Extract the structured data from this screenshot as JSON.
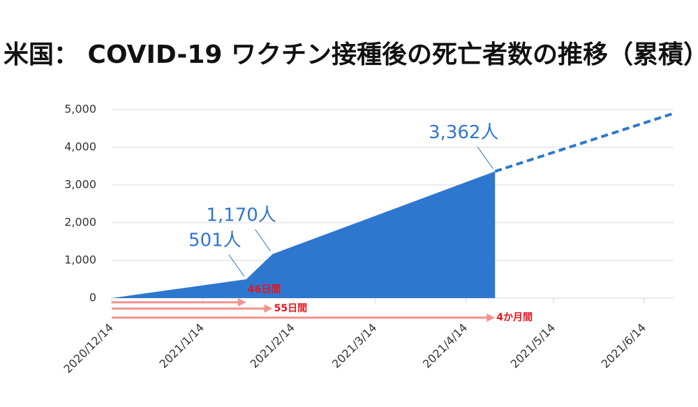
{
  "chart_data": {
    "type": "area",
    "title": "米国： COVID-19 ワクチン接種後の死亡者数の推移（累積）",
    "series": [
      {
        "x": [
          "2020/12/14",
          "2021/1/29",
          "2021/2/7",
          "2021/4/24"
        ],
        "values": [
          0,
          501,
          1170,
          3362
        ],
        "value_labels": [
          null,
          "501人",
          "1,170人",
          "3,362人"
        ],
        "color": "#2e77cf",
        "style": "solid"
      },
      {
        "x": [
          "2021/4/24",
          "2021/6/24"
        ],
        "values": [
          3362,
          4900
        ],
        "color": "#2e77cf",
        "style": "dashed"
      }
    ],
    "annotations": [
      {
        "text": "46日間",
        "x": "2021/1/29"
      },
      {
        "text": "55日間",
        "x": "2021/2/7"
      },
      {
        "text": "4か月間",
        "x": "2021/4/24"
      }
    ],
    "annotation_color": "#f4918e",
    "annotation_text_color": "#e8141a",
    "xlim": [
      "2020/12/14",
      "2021/6/24"
    ],
    "xticks": [
      "2020/12/14",
      "2021/1/14",
      "2021/2/14",
      "2021/3/14",
      "2021/4/14",
      "2021/5/14",
      "2021/6/14"
    ],
    "ylim": [
      0,
      5000
    ],
    "yticks": [
      0,
      {
        "value": 1000,
        "label": "1,000"
      },
      {
        "value": 2000,
        "label": "2,000"
      },
      {
        "value": 3000,
        "label": "3,000"
      },
      {
        "value": 4000,
        "label": "4,000"
      },
      {
        "value": 5000,
        "label": "5,000"
      }
    ],
    "grid": true
  }
}
